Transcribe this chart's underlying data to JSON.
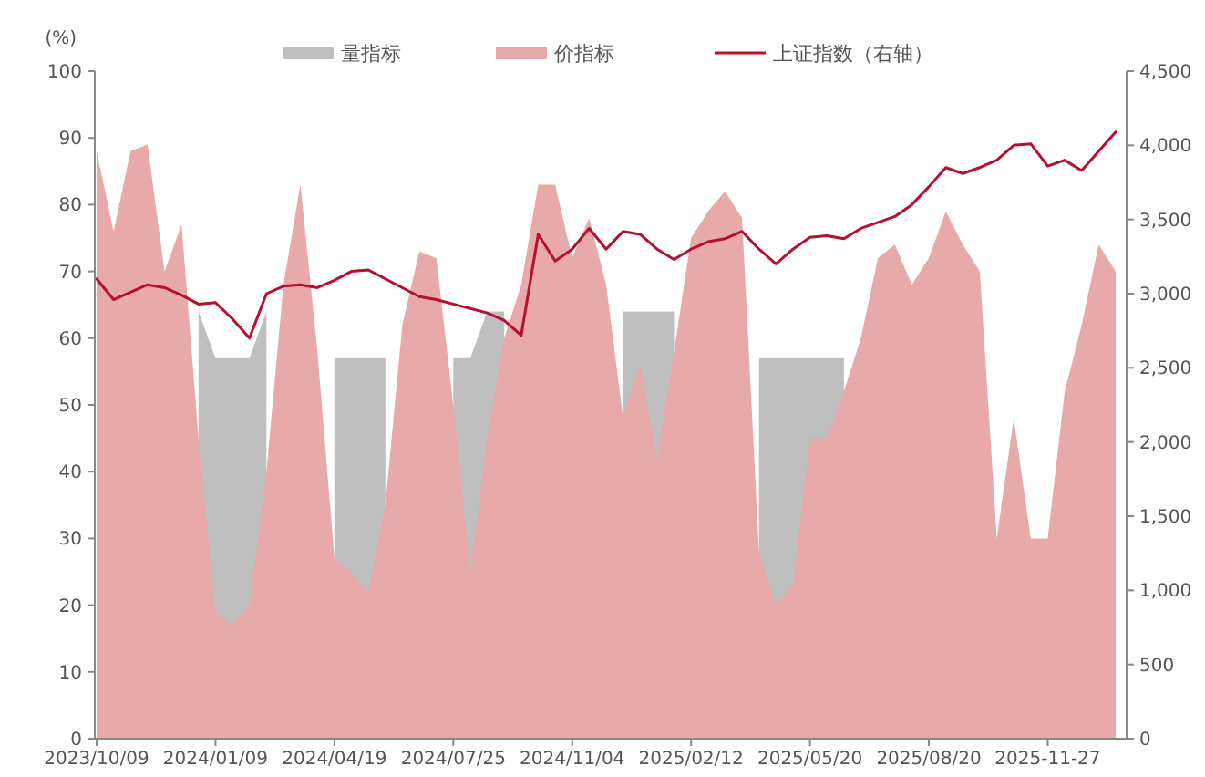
{
  "chart_data": {
    "type": "area",
    "ylabel": "(%)",
    "categories": [
      "2023/10/09",
      null,
      null,
      null,
      null,
      null,
      null,
      "2024/01/09",
      null,
      null,
      null,
      null,
      null,
      null,
      "2024/04/19",
      null,
      null,
      null,
      null,
      null,
      null,
      "2024/07/25",
      null,
      null,
      null,
      null,
      null,
      null,
      "2024/11/04",
      null,
      null,
      null,
      null,
      null,
      null,
      "2025/02/12",
      null,
      null,
      null,
      null,
      null,
      null,
      "2025/05/20",
      null,
      null,
      null,
      null,
      null,
      null,
      "2025/08/20",
      null,
      null,
      null,
      null,
      null,
      null,
      "2025-11-27",
      null,
      null,
      null,
      null
    ],
    "series": [
      {
        "name": "量指标",
        "color": "#bfbfbf",
        "values": [
          null,
          null,
          null,
          null,
          null,
          null,
          64,
          57,
          57,
          57,
          64,
          null,
          null,
          null,
          57,
          57,
          57,
          57,
          null,
          null,
          null,
          57,
          57,
          64,
          64,
          null,
          null,
          null,
          null,
          null,
          null,
          64,
          64,
          64,
          64,
          null,
          null,
          null,
          null,
          57,
          57,
          57,
          57,
          57,
          57,
          null,
          null,
          null,
          null,
          null,
          null,
          null,
          null,
          null,
          null,
          null,
          null,
          null,
          null,
          null,
          null
        ]
      },
      {
        "name": "价指标",
        "color": "#e8a9a9",
        "values": [
          88,
          76,
          88,
          89,
          70,
          77,
          45,
          19,
          17,
          20,
          40,
          68,
          83,
          58,
          27,
          25,
          22,
          35,
          62,
          73,
          72,
          50,
          25,
          45,
          60,
          68,
          83,
          83,
          72,
          78,
          68,
          48,
          56,
          42,
          58,
          75,
          79,
          82,
          78,
          28,
          20,
          23,
          45,
          45,
          52,
          60,
          72,
          74,
          68,
          72,
          79,
          74,
          70,
          30,
          48,
          30,
          30,
          52,
          62,
          74,
          70
        ]
      },
      {
        "name": "上证指数（右轴）",
        "type": "line",
        "axis": "y2",
        "color": "#b5112e",
        "values": [
          3100,
          2960,
          3010,
          3060,
          3040,
          2990,
          2930,
          2940,
          2830,
          2700,
          3000,
          3050,
          3060,
          3040,
          3090,
          3150,
          3160,
          3100,
          3040,
          2980,
          2960,
          2930,
          2900,
          2870,
          2820,
          2720,
          3400,
          3220,
          3300,
          3440,
          3300,
          3420,
          3400,
          3300,
          3230,
          3300,
          3350,
          3370,
          3420,
          3300,
          3200,
          3300,
          3380,
          3390,
          3370,
          3440,
          3480,
          3520,
          3600,
          3720,
          3850,
          3810,
          3850,
          3900,
          4000,
          4010,
          3860,
          3900,
          3830,
          3960,
          4090
        ]
      }
    ],
    "ylim": [
      0,
      100
    ],
    "yticks": [
      0,
      10,
      20,
      30,
      40,
      50,
      60,
      70,
      80,
      90,
      100
    ],
    "y2lim": [
      0,
      4500
    ],
    "y2ticks": [
      0,
      500,
      {
        "value": 1000,
        "label": "1,000"
      },
      {
        "value": 1500,
        "label": "1,500"
      },
      {
        "value": 2000,
        "label": "2,000"
      },
      {
        "value": 2500,
        "label": "2,500"
      },
      {
        "value": 3000,
        "label": "3,000"
      },
      {
        "value": 3500,
        "label": "3,500"
      },
      {
        "value": 4000,
        "label": "4,000"
      },
      {
        "value": 4500,
        "label": "4,500"
      }
    ],
    "legend": "top",
    "grid": false
  }
}
